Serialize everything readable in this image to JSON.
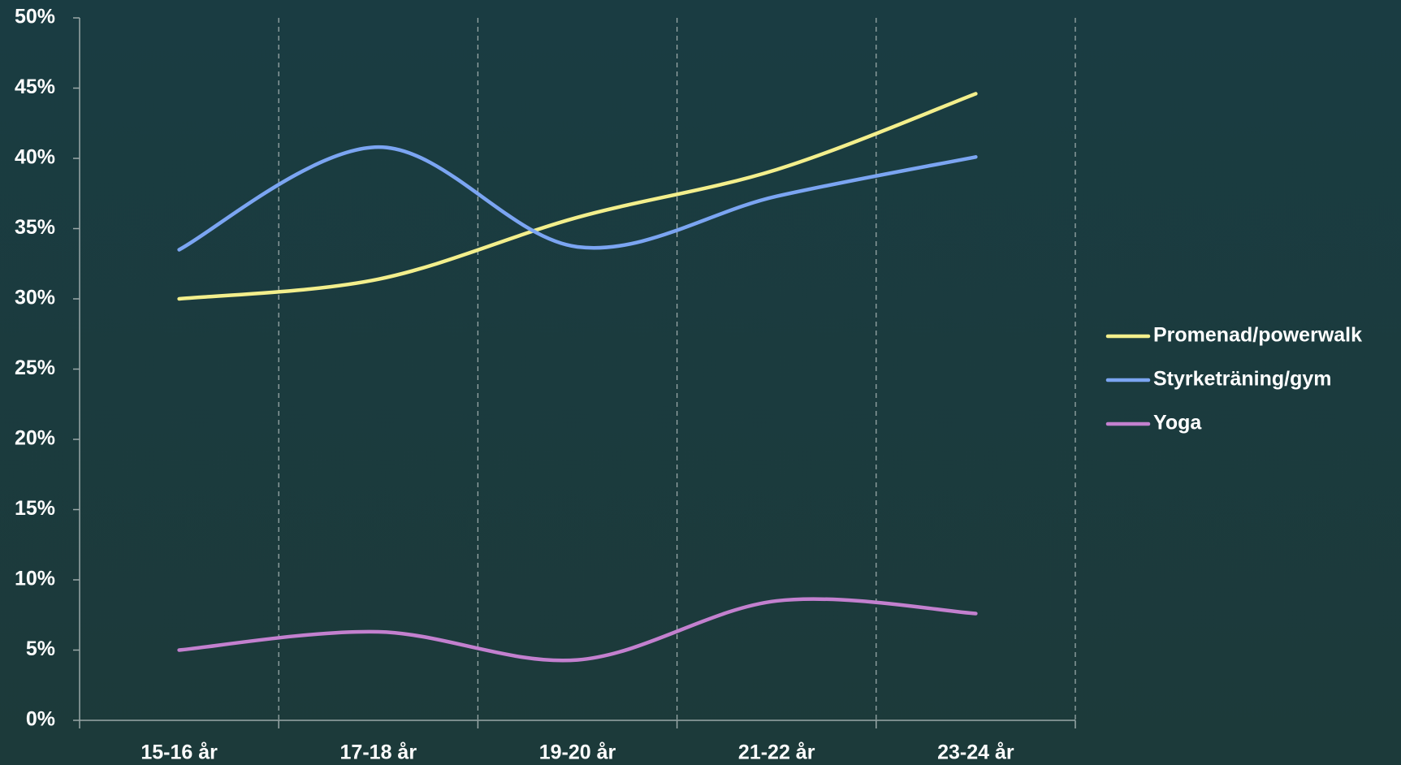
{
  "chart_data": {
    "type": "line",
    "smooth": true,
    "categories": [
      "15-16 år",
      "17-18 år",
      "19-20 år",
      "21-22 år",
      "23-24 år"
    ],
    "series": [
      {
        "name": "Promenad/powerwalk",
        "color": "#f3ef8c",
        "values": [
          30.0,
          31.4,
          35.8,
          39.2,
          44.6
        ]
      },
      {
        "name": "Styrketräning/gym",
        "color": "#7ba5f2",
        "values": [
          33.5,
          40.8,
          33.7,
          37.3,
          40.1
        ]
      },
      {
        "name": "Yoga",
        "color": "#c380cf",
        "values": [
          5.0,
          6.3,
          4.3,
          8.5,
          7.6
        ]
      }
    ],
    "ylim": [
      0,
      50
    ],
    "yticks": [
      {
        "value": 0,
        "label": "0%"
      },
      {
        "value": 5,
        "label": "5%"
      },
      {
        "value": 10,
        "label": "10%"
      },
      {
        "value": 15,
        "label": "15%"
      },
      {
        "value": 20,
        "label": "20%"
      },
      {
        "value": 25,
        "label": "25%"
      },
      {
        "value": 30,
        "label": "30%"
      },
      {
        "value": 35,
        "label": "35%"
      },
      {
        "value": 40,
        "label": "40%"
      },
      {
        "value": 45,
        "label": "45%"
      },
      {
        "value": 50,
        "label": "50%"
      }
    ],
    "grid": false,
    "legend": "right"
  }
}
